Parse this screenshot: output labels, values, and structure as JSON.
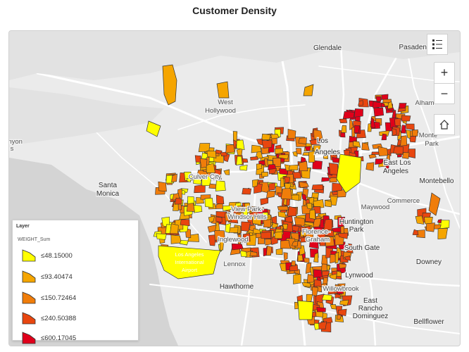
{
  "title": "Customer Density",
  "map": {
    "places": [
      {
        "name": "Glendale",
        "dark": true
      },
      {
        "name": "Pasadena",
        "dark": true
      },
      {
        "name": "Alham",
        "dark": false
      },
      {
        "name": "West",
        "dark": false
      },
      {
        "name": "Hollywood",
        "dark": false
      },
      {
        "name": "Los",
        "dark": true
      },
      {
        "name": "Angeles",
        "dark": true
      },
      {
        "name": "Monte",
        "dark": false
      },
      {
        "name": "Park",
        "dark": false
      },
      {
        "name": "East Los",
        "dark": true
      },
      {
        "name": "Angeles",
        "dark": true
      },
      {
        "name": "Santa",
        "dark": true
      },
      {
        "name": "Monica",
        "dark": true
      },
      {
        "name": "Culver City",
        "dark": false
      },
      {
        "name": "Montebello",
        "dark": true
      },
      {
        "name": "Commerce",
        "dark": false
      },
      {
        "name": "Maywood",
        "dark": false
      },
      {
        "name": "View Park-",
        "dark": false
      },
      {
        "name": "Windsor Hills",
        "dark": false
      },
      {
        "name": "Huntington",
        "dark": true
      },
      {
        "name": "Park",
        "dark": true
      },
      {
        "name": "Florence-",
        "dark": false
      },
      {
        "name": "Graham",
        "dark": false
      },
      {
        "name": "Inglewood",
        "dark": false
      },
      {
        "name": "Los Angeles",
        "dark": false
      },
      {
        "name": "International",
        "dark": false
      },
      {
        "name": "Airport",
        "dark": false
      },
      {
        "name": "South Gate",
        "dark": true
      },
      {
        "name": "Lennox",
        "dark": false
      },
      {
        "name": "Downey",
        "dark": true
      },
      {
        "name": "Lynwood",
        "dark": true
      },
      {
        "name": "Hawthorne",
        "dark": true
      },
      {
        "name": "Willowbrook",
        "dark": false
      },
      {
        "name": "East",
        "dark": true
      },
      {
        "name": "Rancho",
        "dark": true
      },
      {
        "name": "Dominguez",
        "dark": true
      },
      {
        "name": "Bellflower",
        "dark": true
      },
      {
        "name": "anyon",
        "dark": false
      },
      {
        "name": "s",
        "dark": false
      }
    ]
  },
  "controls": {
    "legend_icon": "legend-list-icon",
    "zoom_in": "+",
    "zoom_out": "−",
    "home_icon": "home-icon"
  },
  "legend": {
    "title": "Layer",
    "field": "WEIGHT_Sum",
    "classes": [
      {
        "label": "≤48.15000",
        "color": "#ffff00"
      },
      {
        "label": "≤93.40474",
        "color": "#f5a500"
      },
      {
        "label": "≤150.72464",
        "color": "#f07d0a"
      },
      {
        "label": "≤240.50388",
        "color": "#e8460f"
      },
      {
        "label": "≤600.17045",
        "color": "#e0001a"
      }
    ]
  }
}
